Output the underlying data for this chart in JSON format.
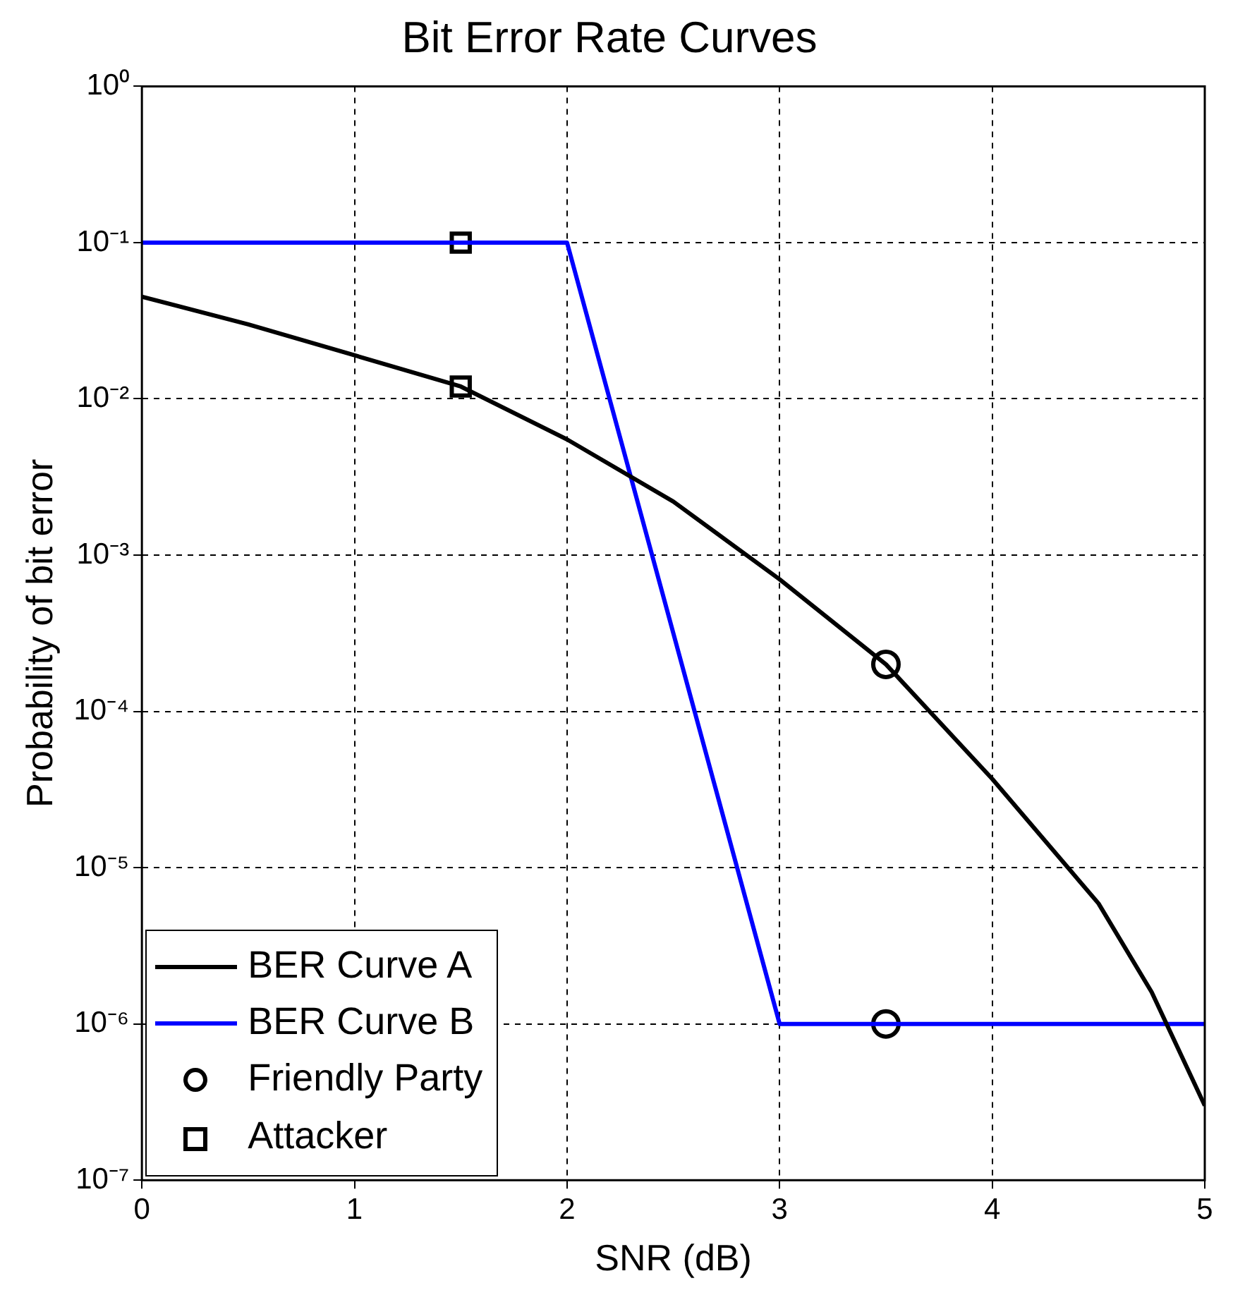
{
  "chart_data": {
    "type": "line",
    "title": "Bit Error Rate Curves",
    "xlabel": "SNR (dB)",
    "ylabel": "Probability of bit error",
    "series": [
      {
        "name": "BER Curve A",
        "type": "line",
        "color": "#000000",
        "marker": "none",
        "line_style": "solid",
        "x": [
          0,
          0.5,
          1,
          1.5,
          2,
          2.5,
          3,
          3.5,
          4,
          4.5,
          4.75,
          5
        ],
        "values": [
          0.045,
          0.03,
          0.019,
          0.012,
          0.0055,
          0.0022,
          0.0007,
          0.0002,
          3.7e-05,
          5.9e-06,
          1.6e-06,
          3e-07
        ]
      },
      {
        "name": "BER Curve B",
        "type": "line",
        "color": "#0000ff",
        "marker": "none",
        "line_style": "solid",
        "x": [
          0,
          2,
          3,
          5
        ],
        "values": [
          0.1,
          0.1,
          1e-06,
          1e-06
        ]
      },
      {
        "name": "Friendly Party",
        "type": "scatter",
        "color": "#000000",
        "marker": "circle",
        "x": [
          3.5,
          3.5
        ],
        "values": [
          0.0002,
          1e-06
        ]
      },
      {
        "name": "Attacker",
        "type": "scatter",
        "color": "#000000",
        "marker": "square",
        "x": [
          1.5,
          1.5
        ],
        "values": [
          0.1,
          0.012
        ]
      }
    ],
    "log": "y",
    "xlim": [
      0,
      5
    ],
    "xticks": [
      0,
      1,
      2,
      3,
      4,
      5
    ],
    "ylim": [
      1e-07,
      1
    ],
    "yticks": [
      {
        "value": 1e-07,
        "label": "10⁻⁷"
      },
      {
        "value": 1e-06,
        "label": "10⁻⁶"
      },
      {
        "value": 1e-05,
        "label": "10⁻⁵"
      },
      {
        "value": 0.0001,
        "label": "10⁻⁴"
      },
      {
        "value": 0.001,
        "label": "10⁻³"
      },
      {
        "value": 0.01,
        "label": "10⁻²"
      },
      {
        "value": 0.1,
        "label": "10⁻¹"
      },
      {
        "value": 1,
        "label": "10⁰"
      }
    ],
    "grid": true,
    "legend": "bottom left"
  }
}
